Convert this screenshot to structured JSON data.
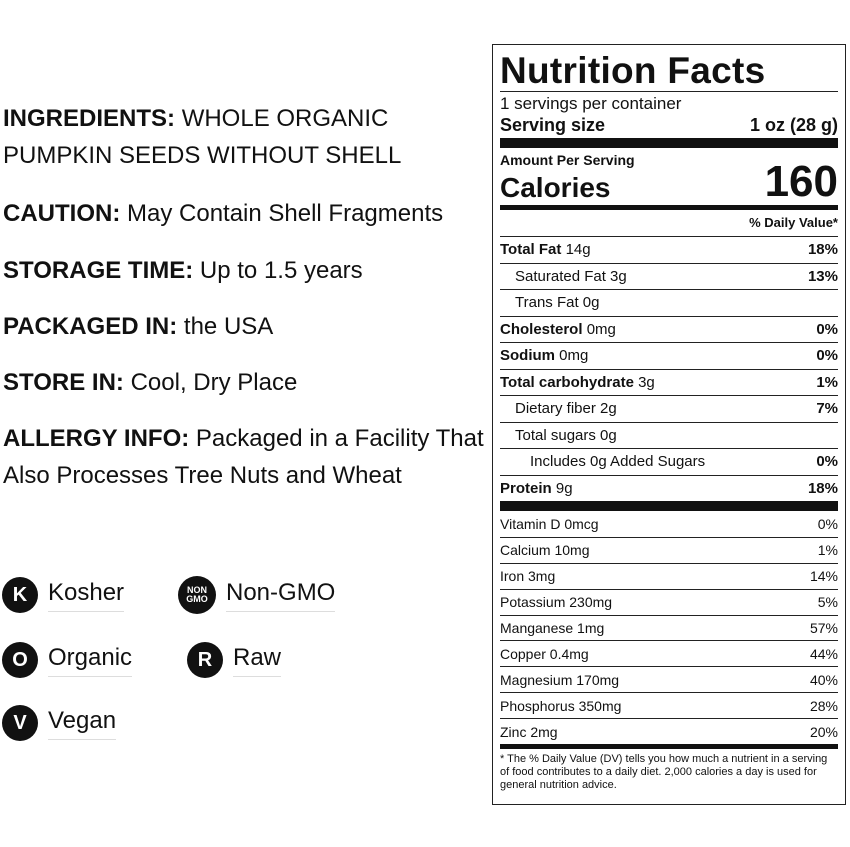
{
  "info": [
    {
      "label": "INGREDIENTS:",
      "text": "WHOLE ORGANIC PUMPKIN SEEDS WITHOUT SHELL"
    },
    {
      "label": "CAUTION:",
      "text": "May Contain Shell Fragments"
    },
    {
      "label": "STORAGE TIME:",
      "text": "Up to 1.5 years"
    },
    {
      "label": "PACKAGED IN:",
      "text": "the USA"
    },
    {
      "label": "STORE IN:",
      "text": "Cool, Dry Place"
    },
    {
      "label": "ALLERGY INFO:",
      "text": "Packaged in a Facility That Also Processes Tree Nuts and Wheat"
    }
  ],
  "badges": [
    {
      "icon": "K",
      "label": "Kosher"
    },
    {
      "icon": "NON GMO",
      "label": "Non-GMO"
    },
    {
      "icon": "O",
      "label": "Organic"
    },
    {
      "icon": "R",
      "label": "Raw"
    },
    {
      "icon": "V",
      "label": "Vegan"
    }
  ],
  "nutrition": {
    "title": "Nutrition Facts",
    "servings": "1 servings per container",
    "serving_size_label": "Serving size",
    "serving_size_value": "1 oz (28 g)",
    "amount_per_serving": "Amount Per Serving",
    "calories_label": "Calories",
    "calories": 160,
    "dv_header": "% Daily Value*",
    "rows": [
      {
        "name": "Total Fat",
        "amount": "14g",
        "dv": "18%"
      },
      {
        "name": "Saturated Fat 3g",
        "dv": "13%"
      },
      {
        "name": "Trans Fat 0g"
      },
      {
        "name": "Cholesterol",
        "amount": "0mg",
        "dv": "0%"
      },
      {
        "name": "Sodium",
        "amount": "0mg",
        "dv": "0%"
      },
      {
        "name": "Total carbohydrate",
        "amount": "3g",
        "dv": "1%"
      },
      {
        "name": "Dietary fiber 2g",
        "dv": "7%"
      },
      {
        "name": "Total sugars 0g"
      },
      {
        "name": "Includes 0g Added Sugars",
        "dv": "0%"
      },
      {
        "name": "Protein",
        "amount": "9g",
        "dv": "18%"
      }
    ],
    "vitamins": [
      {
        "name": "Vitamin D 0mcg",
        "dv": "0%"
      },
      {
        "name": "Calcium 10mg",
        "dv": "1%"
      },
      {
        "name": "Iron 3mg",
        "dv": "14%"
      },
      {
        "name": "Potassium 230mg",
        "dv": "5%"
      },
      {
        "name": "Manganese 1mg",
        "dv": "57%"
      },
      {
        "name": "Copper 0.4mg",
        "dv": "44%"
      },
      {
        "name": "Magnesium 170mg",
        "dv": "40%"
      },
      {
        "name": "Phosphorus 350mg",
        "dv": "28%"
      },
      {
        "name": "Zinc 2mg",
        "dv": "20%"
      }
    ],
    "footnote": "* The % Daily Value (DV) tells you how much a nutrient in a serving of food contributes to a daily diet. 2,000 calories a day is used for general nutrition advice."
  }
}
